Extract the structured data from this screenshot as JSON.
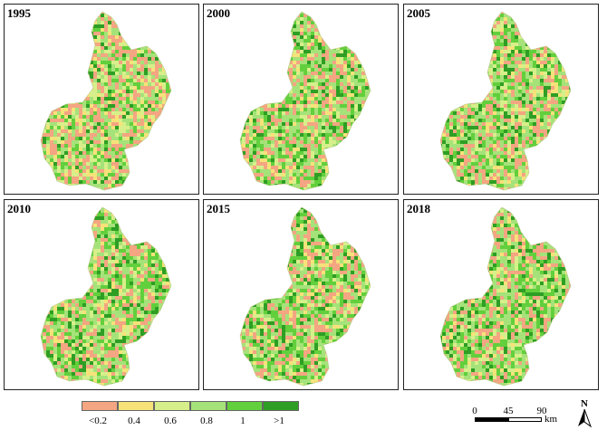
{
  "panels": [
    {
      "label": "1995",
      "green_share": 0.45
    },
    {
      "label": "2000",
      "green_share": 0.55
    },
    {
      "label": "2005",
      "green_share": 0.55
    },
    {
      "label": "2010",
      "green_share": 0.58
    },
    {
      "label": "2015",
      "green_share": 0.58
    },
    {
      "label": "2018",
      "green_share": 0.6
    }
  ],
  "legend": {
    "classes": [
      {
        "label": "<0.2",
        "color": "#f4a582"
      },
      {
        "label": "0.4",
        "color": "#f7e27a"
      },
      {
        "label": "0.6",
        "color": "#d7ef8a"
      },
      {
        "label": "0.8",
        "color": "#a6e27a"
      },
      {
        "label": "1",
        "color": "#62cf3c"
      },
      {
        "label": ">1",
        "color": "#2e9e24"
      }
    ]
  },
  "scalebar": {
    "ticks": [
      "0",
      "45",
      "90"
    ],
    "unit": "km"
  },
  "north_arrow": {
    "label": "N",
    "icon": "north-arrow-icon"
  }
}
